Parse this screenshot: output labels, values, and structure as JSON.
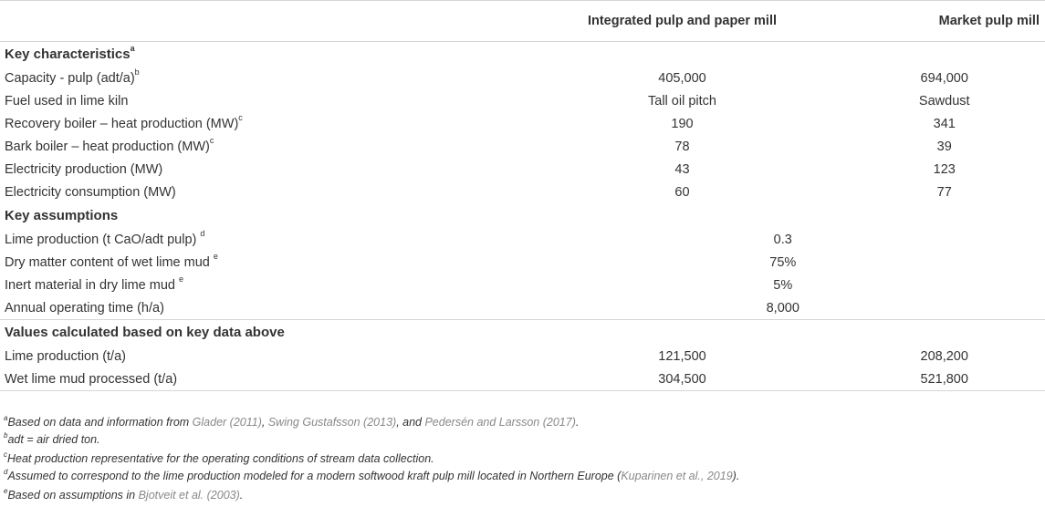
{
  "header": {
    "col_label": "",
    "col_a": "Integrated pulp and paper mill",
    "col_b": "Market pulp mill"
  },
  "sections": {
    "key_characteristics": {
      "title": "Key characteristics",
      "title_sup": "a",
      "rows": [
        {
          "label": "Capacity - pulp (adt/a)",
          "sup": "b",
          "a": "405,000",
          "b": "694,000"
        },
        {
          "label": "Fuel used in lime kiln",
          "sup": "",
          "a": "Tall oil pitch",
          "b": "Sawdust"
        },
        {
          "label": "Recovery boiler – heat production (MW)",
          "sup": "c",
          "a": "190",
          "b": "341"
        },
        {
          "label": "Bark boiler – heat production (MW)",
          "sup": "c",
          "a": "78",
          "b": "39"
        },
        {
          "label": "Electricity production (MW)",
          "sup": "",
          "a": "43",
          "b": "123"
        },
        {
          "label": "Electricity consumption (MW)",
          "sup": "",
          "a": "60",
          "b": "77"
        }
      ]
    },
    "key_assumptions": {
      "title": "Key assumptions",
      "rows": [
        {
          "label": "Lime production (t CaO/adt pulp) ",
          "sup": "d",
          "value": "0.3"
        },
        {
          "label": "Dry matter content of wet lime mud ",
          "sup": "e",
          "value": "75%"
        },
        {
          "label": "Inert material in dry lime mud ",
          "sup": "e",
          "value": "5%"
        },
        {
          "label": "Annual operating time (h/a)",
          "sup": "",
          "value": "8,000"
        }
      ]
    },
    "calculated": {
      "title": "Values calculated based on key data above",
      "rows": [
        {
          "label": "Lime production (t/a)",
          "a": "121,500",
          "b": "208,200"
        },
        {
          "label": "Wet lime mud processed (t/a)",
          "a": "304,500",
          "b": "521,800"
        }
      ]
    }
  },
  "footnotes": {
    "a": {
      "sup": "a",
      "pre": "Based on data and information from ",
      "ref1": "Glader (2011)",
      "sep1": ", ",
      "ref2": "Swing Gustafsson (2013)",
      "sep2": ", and ",
      "ref3": "Pedersén and Larsson (2017)",
      "post": "."
    },
    "b": {
      "sup": "b",
      "text": "adt = air dried ton."
    },
    "c": {
      "sup": "c",
      "text": "Heat production representative for the operating conditions of stream data collection."
    },
    "d": {
      "sup": "d",
      "pre": "Assumed to correspond to the lime production modeled for a modern softwood kraft pulp mill located in Northern Europe (",
      "ref": "Kuparinen et al., 2019",
      "post": ")."
    },
    "e": {
      "sup": "e",
      "pre": "Based on assumptions in ",
      "ref": "Bjotveit et al. (2003)",
      "post": "."
    }
  }
}
